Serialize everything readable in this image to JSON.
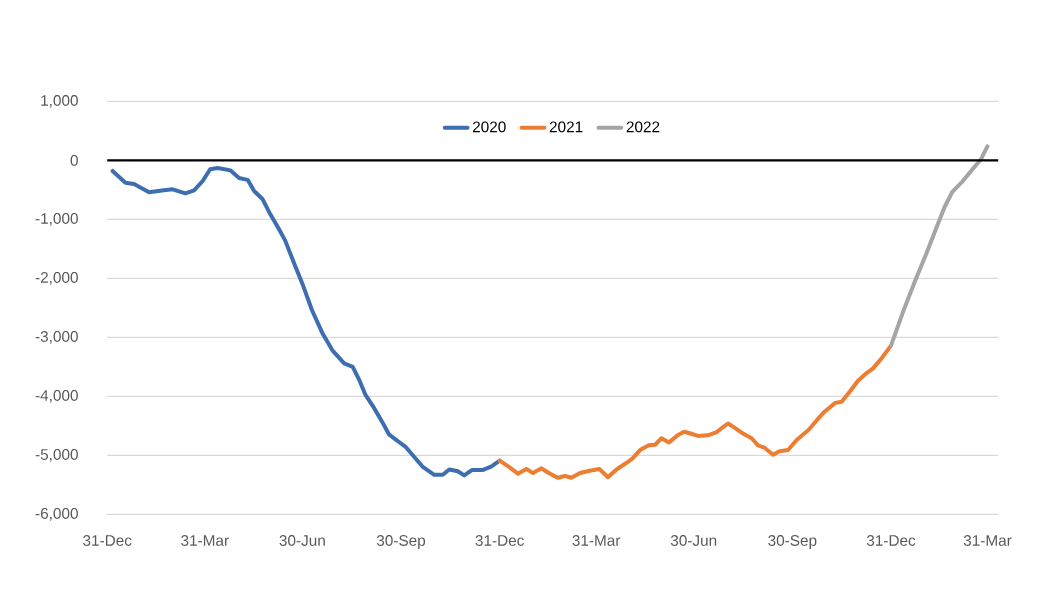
{
  "chart_data": {
    "type": "line",
    "xlim": [
      "2019-12-31",
      "2022-04-10"
    ],
    "ylim": [
      -6000,
      1000
    ],
    "xticks": [
      {
        "value": "2019-12-31",
        "label": "31-Dec"
      },
      {
        "value": "2020-03-31",
        "label": "31-Mar"
      },
      {
        "value": "2020-06-30",
        "label": "30-Jun"
      },
      {
        "value": "2020-09-30",
        "label": "30-Sep"
      },
      {
        "value": "2020-12-31",
        "label": "31-Dec"
      },
      {
        "value": "2021-03-31",
        "label": "31-Mar"
      },
      {
        "value": "2021-06-30",
        "label": "30-Jun"
      },
      {
        "value": "2021-09-30",
        "label": "30-Sep"
      },
      {
        "value": "2021-12-31",
        "label": "31-Dec"
      },
      {
        "value": "2022-03-31",
        "label": "31-Mar"
      }
    ],
    "yticks": [
      {
        "value": 1000,
        "label": "1,000"
      },
      0,
      {
        "value": -1000,
        "label": "-1,000"
      },
      {
        "value": -2000,
        "label": "-2,000"
      },
      {
        "value": -3000,
        "label": "-3,000"
      },
      {
        "value": -4000,
        "label": "-4,000"
      },
      {
        "value": -5000,
        "label": "-5,000"
      },
      {
        "value": -6000,
        "label": "-6,000"
      }
    ],
    "grid": "y",
    "legend": "top",
    "marker": "none",
    "line_style": "solid",
    "ref_lines": [
      {
        "axis": "y",
        "value": 0,
        "color": "#000000"
      }
    ],
    "series": [
      {
        "name": "2020",
        "color": "#3d6fb0",
        "x": [
          "2020-01-05",
          "2020-01-17",
          "2020-01-25",
          "2020-02-08",
          "2020-02-20",
          "2020-03-01",
          "2020-03-13",
          "2020-03-21",
          "2020-03-29",
          "2020-04-05",
          "2020-04-12",
          "2020-04-24",
          "2020-05-02",
          "2020-05-10",
          "2020-05-16",
          "2020-05-24",
          "2020-05-31",
          "2020-06-08",
          "2020-06-14",
          "2020-06-22",
          "2020-06-30",
          "2020-07-09",
          "2020-07-19",
          "2020-07-28",
          "2020-08-08",
          "2020-08-16",
          "2020-08-22",
          "2020-08-28",
          "2020-09-05",
          "2020-09-13",
          "2020-09-19",
          "2020-09-27",
          "2020-10-04",
          "2020-10-12",
          "2020-10-20",
          "2020-10-31",
          "2020-11-08",
          "2020-11-14",
          "2020-11-22",
          "2020-11-28",
          "2020-12-05",
          "2020-12-15",
          "2020-12-23",
          "2020-12-31"
        ],
        "values": [
          -180,
          -380,
          -400,
          -540,
          -510,
          -490,
          -560,
          -510,
          -350,
          -150,
          -130,
          -170,
          -300,
          -330,
          -520,
          -660,
          -910,
          -1160,
          -1360,
          -1730,
          -2090,
          -2540,
          -2940,
          -3220,
          -3440,
          -3500,
          -3720,
          -3980,
          -4200,
          -4450,
          -4650,
          -4760,
          -4850,
          -5020,
          -5190,
          -5330,
          -5330,
          -5240,
          -5270,
          -5340,
          -5250,
          -5250,
          -5190,
          -5090
        ]
      },
      {
        "name": "2021",
        "color": "#ed7d31",
        "x": [
          "2020-12-31",
          "2021-01-09",
          "2021-01-17",
          "2021-01-25",
          "2021-01-31",
          "2021-02-08",
          "2021-02-14",
          "2021-02-23",
          "2021-03-02",
          "2021-03-08",
          "2021-03-16",
          "2021-03-25",
          "2021-04-03",
          "2021-04-11",
          "2021-04-19",
          "2021-04-28",
          "2021-05-04",
          "2021-05-11",
          "2021-05-19",
          "2021-05-25",
          "2021-05-31",
          "2021-06-07",
          "2021-06-15",
          "2021-06-21",
          "2021-06-27",
          "2021-07-04",
          "2021-07-13",
          "2021-07-21",
          "2021-07-26",
          "2021-08-01",
          "2021-08-07",
          "2021-08-15",
          "2021-08-23",
          "2021-08-29",
          "2021-09-04",
          "2021-09-12",
          "2021-09-18",
          "2021-09-26",
          "2021-10-04",
          "2021-10-15",
          "2021-10-23",
          "2021-10-30",
          "2021-11-09",
          "2021-11-15",
          "2021-11-23",
          "2021-11-30",
          "2021-12-08",
          "2021-12-14",
          "2021-12-22",
          "2021-12-31"
        ],
        "values": [
          -5090,
          -5200,
          -5310,
          -5230,
          -5300,
          -5220,
          -5290,
          -5380,
          -5350,
          -5380,
          -5300,
          -5260,
          -5230,
          -5370,
          -5240,
          -5130,
          -5050,
          -4910,
          -4830,
          -4820,
          -4710,
          -4780,
          -4660,
          -4600,
          -4630,
          -4670,
          -4660,
          -4610,
          -4540,
          -4460,
          -4530,
          -4630,
          -4710,
          -4830,
          -4870,
          -4990,
          -4930,
          -4910,
          -4740,
          -4570,
          -4400,
          -4260,
          -4110,
          -4090,
          -3910,
          -3740,
          -3610,
          -3530,
          -3360,
          -3140
        ]
      },
      {
        "name": "2022",
        "color": "#a5a5a5",
        "x": [
          "2021-12-31",
          "2022-01-11",
          "2022-01-23",
          "2022-02-02",
          "2022-02-11",
          "2022-02-19",
          "2022-02-26",
          "2022-03-08",
          "2022-03-17",
          "2022-03-25",
          "2022-03-31"
        ],
        "values": [
          -3140,
          -2580,
          -2020,
          -1580,
          -1160,
          -790,
          -540,
          -350,
          -150,
          20,
          240
        ]
      }
    ]
  }
}
